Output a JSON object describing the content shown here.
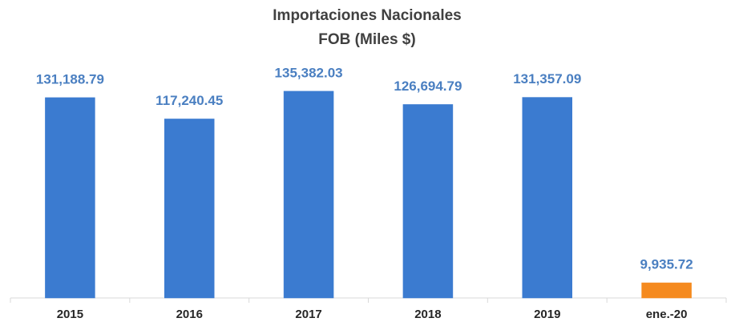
{
  "chart_data": {
    "type": "bar",
    "title": [
      "Importaciones Nacionales",
      "FOB (Miles $)"
    ],
    "categories": [
      "2015",
      "2016",
      "2017",
      "2018",
      "2019",
      "ene.-20"
    ],
    "values": [
      131188.79,
      117240.45,
      135382.03,
      126694.79,
      131357.09,
      9935.72
    ],
    "value_labels": [
      "131,188.79",
      "117,240.45",
      "135,382.03",
      "126,694.79",
      "131,357.09",
      "9,935.72"
    ],
    "colors": [
      "#3b7bd0",
      "#3b7bd0",
      "#3b7bd0",
      "#3b7bd0",
      "#3b7bd0",
      "#f58a1f"
    ],
    "ylim": [
      0,
      150000
    ]
  }
}
